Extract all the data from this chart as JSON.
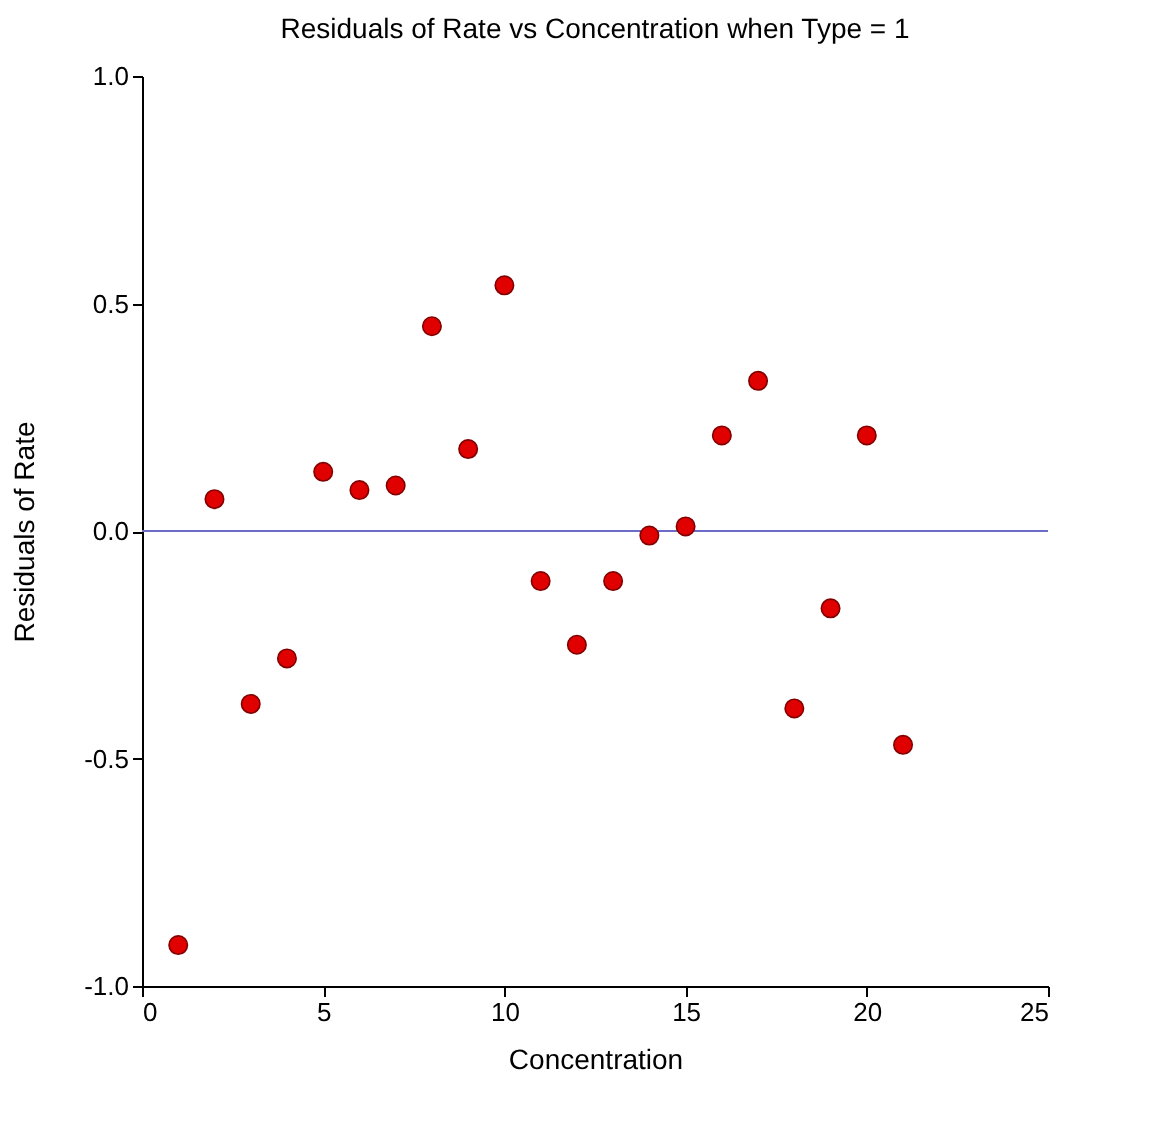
{
  "chart_data": {
    "type": "scatter",
    "title": "Residuals of Rate vs Concentration when Type = 1",
    "xlabel": "Concentration",
    "ylabel": "Residuals of Rate",
    "x": [
      1,
      2,
      3,
      4,
      5,
      6,
      7,
      8,
      9,
      10,
      11,
      12,
      13,
      14,
      15,
      16,
      17,
      18,
      19,
      20,
      21
    ],
    "series": [
      {
        "color": "#e00000",
        "values": [
          -0.91,
          0.07,
          -0.38,
          -0.28,
          0.13,
          0.09,
          0.1,
          0.45,
          0.18,
          0.54,
          -0.11,
          -0.25,
          -0.11,
          -0.01,
          0.01,
          0.21,
          0.33,
          -0.39,
          -0.17,
          0.21,
          -0.47
        ]
      }
    ],
    "xlim": [
      0,
      25
    ],
    "xticks": [
      0,
      5,
      10,
      15,
      20,
      25
    ],
    "ylim": [
      -1,
      1
    ],
    "yticks": [
      {
        "value": -1,
        "label": "-1.0"
      },
      {
        "value": -0.5,
        "label": "-0.5"
      },
      {
        "value": 0,
        "label": "0.0"
      },
      {
        "value": 0.5,
        "label": "0.5"
      },
      {
        "value": 1,
        "label": "1.0"
      }
    ],
    "ref_lines": [
      {
        "axis": "y",
        "value": 0,
        "color": "#6b6bc8"
      }
    ],
    "marker": "circle",
    "grid": false
  }
}
